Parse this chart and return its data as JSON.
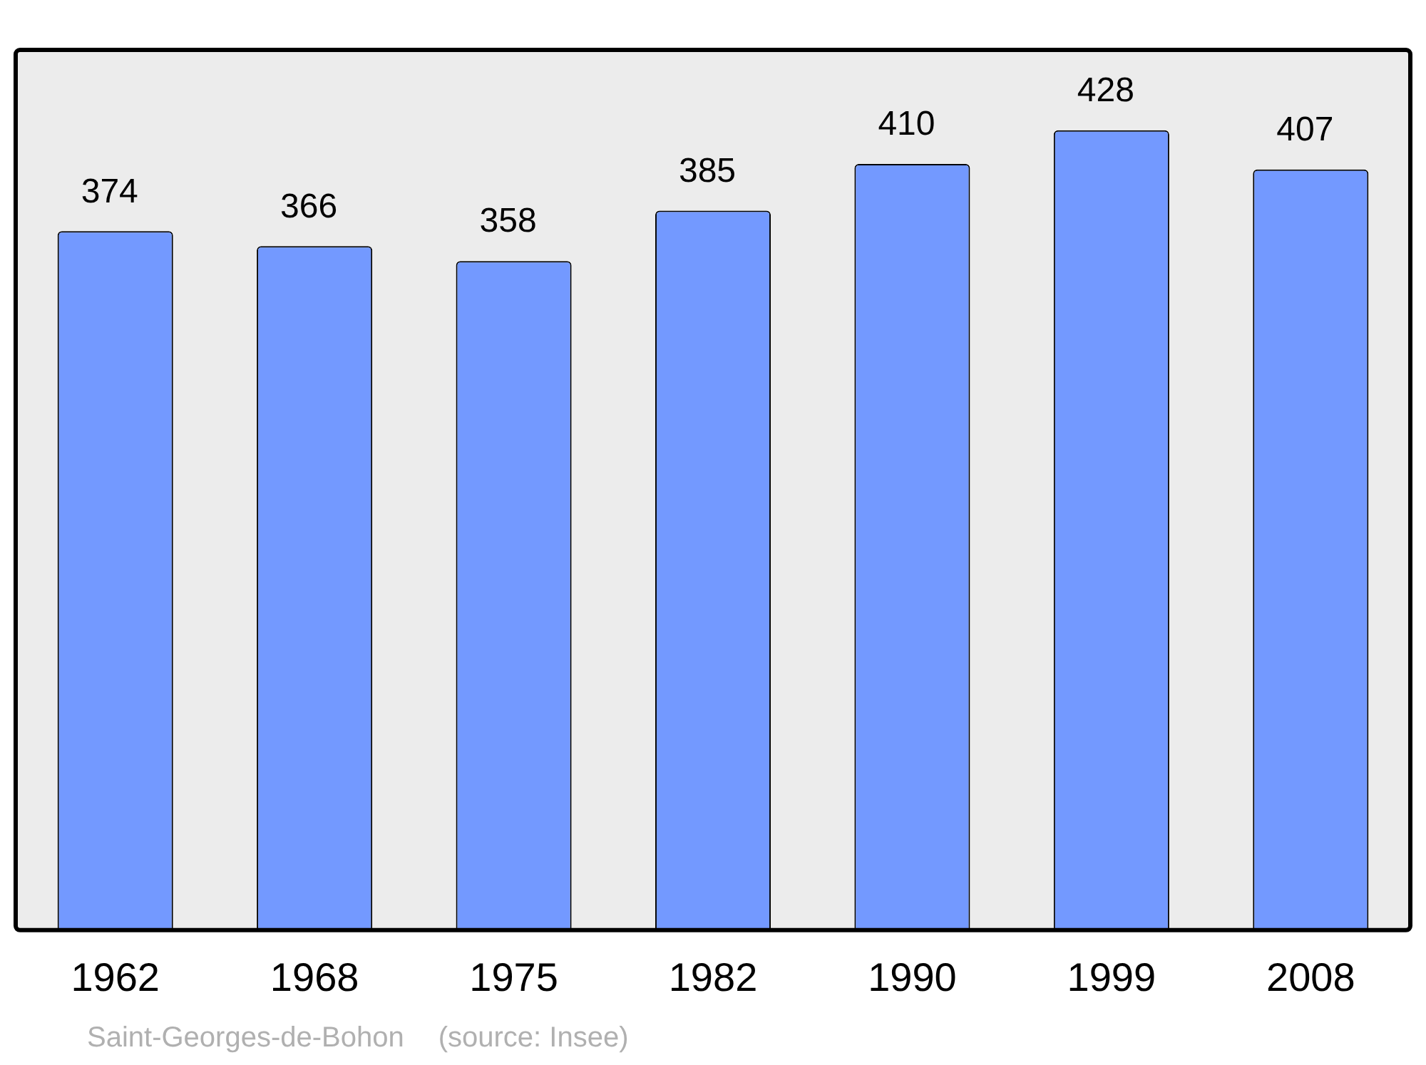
{
  "chart_data": {
    "type": "bar",
    "categories": [
      "1962",
      "1968",
      "1975",
      "1982",
      "1990",
      "1999",
      "2008"
    ],
    "values": [
      374,
      366,
      358,
      385,
      410,
      428,
      407
    ],
    "color": "#7399ff",
    "ylim": [
      0,
      471
    ],
    "data_labels": true,
    "legend": false,
    "annotations": [
      "Saint-Georges-de-Bohon",
      "(source: Insee)"
    ]
  }
}
